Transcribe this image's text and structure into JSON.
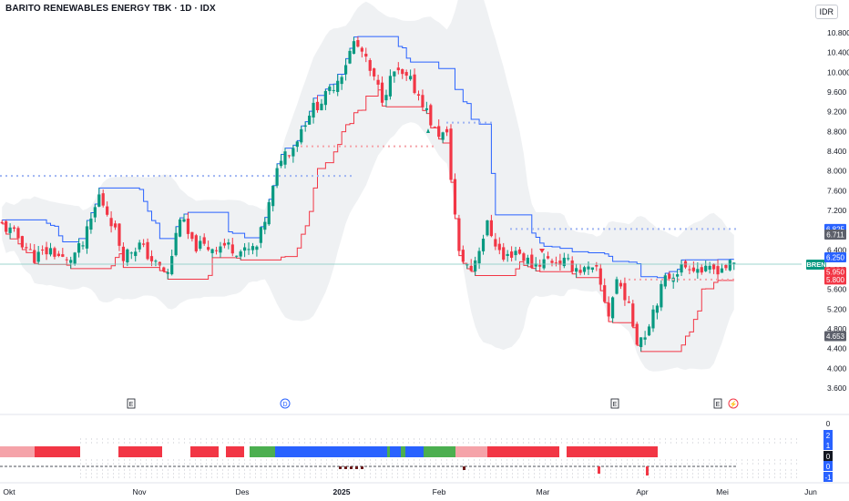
{
  "header": {
    "title": "BARITO RENEWABLES ENERGY TBK · 1D · IDX",
    "currency": "IDR"
  },
  "chart_data": {
    "type": "candlestick",
    "ticker_label": "BREN",
    "y_axis_ticks": [
      "10.800",
      "10.400",
      "10.000",
      "9.600",
      "9.200",
      "8.800",
      "8.400",
      "8.000",
      "7.600",
      "7.200",
      "6.800",
      "6.400",
      "6.000",
      "5.600",
      "5.200",
      "4.800",
      "4.400",
      "4.000",
      "3.600"
    ],
    "y_axis_tick_values": [
      10800,
      10400,
      10000,
      9600,
      9200,
      8800,
      8400,
      8000,
      7600,
      7200,
      6800,
      6400,
      6000,
      5600,
      5200,
      4800,
      4400,
      4000,
      3600
    ],
    "ylim": [
      3500,
      11200
    ],
    "x_axis_labels": [
      "Okt",
      "Nov",
      "Des",
      "2025",
      "Feb",
      "Mar",
      "Apr",
      "Mei",
      "Jun"
    ],
    "price_tags": [
      {
        "label": "6.825",
        "value": 6825,
        "color": "#2962ff"
      },
      {
        "label": "6.711",
        "value": 6711,
        "color": "#5d606b"
      },
      {
        "label": "6.250",
        "value": 6250,
        "color": "#2962ff"
      },
      {
        "label": "5.950",
        "value": 5950,
        "color": "#f23645"
      },
      {
        "label": "5.800",
        "value": 5800,
        "color": "#f23645"
      },
      {
        "label": "4.653",
        "value": 4653,
        "color": "#5d606b"
      }
    ],
    "event_markers": [
      {
        "type": "E",
        "label": "E",
        "month": "Nov"
      },
      {
        "type": "D",
        "label": "D",
        "month": "Des"
      },
      {
        "type": "E",
        "label": "E",
        "month": "Mar"
      },
      {
        "type": "E",
        "label": "E",
        "month": "Mei"
      },
      {
        "type": "split",
        "label": "⚡",
        "month": "Mei"
      }
    ],
    "lower_axis_ticks": [
      "0",
      "2",
      "1",
      "0",
      "0",
      "-1"
    ],
    "colors": {
      "up": "#089981",
      "down": "#f23645",
      "upper_band": "#2962ff",
      "lower_band": "#f23645",
      "cloud": "#ebedf0"
    }
  }
}
